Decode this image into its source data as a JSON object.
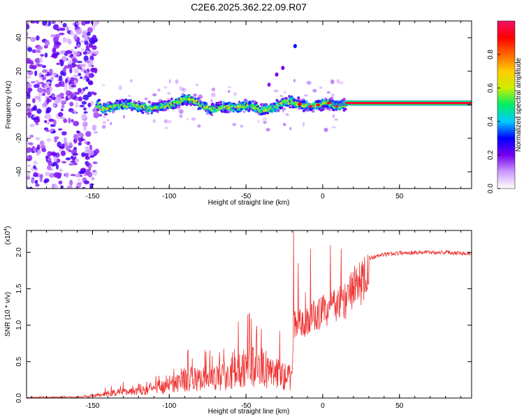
{
  "chart_data": [
    {
      "type": "heatmap",
      "title": "C2E6.2025.362.22.09.R07",
      "xlabel": "Height of straight line (km)",
      "ylabel": "Frequency (Hz)",
      "xlim": [
        -193,
        97
      ],
      "ylim": [
        -50,
        50
      ],
      "xticks": [
        -150,
        -100,
        -50,
        0,
        50
      ],
      "yticks": [
        -40,
        -20,
        0,
        20,
        40
      ],
      "xtick_labels": [
        "-150",
        "-100",
        "-50",
        "0",
        "50"
      ],
      "ytick_labels": [
        "-40",
        "-20",
        "0",
        "20",
        "40"
      ],
      "colorbar": {
        "label": "Normalized spectral amplitude",
        "range": [
          0,
          1
        ],
        "ticks": [
          0.0,
          0.2,
          0.4,
          0.6,
          0.8
        ],
        "tick_labels": [
          "0.0",
          "0.2",
          "0.4",
          "0.6",
          "0.8"
        ],
        "colors": [
          "#ffffff",
          "#cc99ff",
          "#7700ee",
          "#0000ff",
          "#00ccff",
          "#00ee66",
          "#ccee00",
          "#ffcc00",
          "#ff6600",
          "#ff0000",
          "#ee1166"
        ]
      },
      "regions": [
        {
          "name": "noise",
          "x_range": [
            -193,
            -147
          ],
          "freq_range": [
            -50,
            50
          ],
          "amplitude": 0.2
        },
        {
          "name": "weak-signal",
          "x_range": [
            -147,
            15
          ],
          "freq_center": 0,
          "freq_spread": 4,
          "amplitude": 0.35
        },
        {
          "name": "strong-line",
          "x_range": [
            15,
            97
          ],
          "freq_center": 1,
          "amplitude": 0.95
        }
      ],
      "ridge": {
        "x": [
          -145,
          -135,
          -125,
          -115,
          -105,
          -95,
          -88,
          -80,
          -72,
          -64,
          -56,
          -48,
          -40,
          -32,
          -26,
          -20,
          -14,
          -8,
          -2,
          4,
          10,
          14
        ],
        "y": [
          -3,
          -1,
          0,
          -2,
          -1,
          1,
          4,
          0,
          -3,
          -1,
          -2,
          0,
          -3,
          -2,
          1,
          2,
          0,
          -1,
          0,
          1,
          -1,
          0
        ]
      }
    },
    {
      "type": "line",
      "xlabel": "Height of straight line (km)",
      "ylabel": "SNR (10 * v/v)",
      "y_multiplier": "(x10",
      "y_exponent": "4",
      "y_exponent_close": ")",
      "xlim": [
        -193,
        97
      ],
      "ylim": [
        0,
        2.3
      ],
      "xticks": [
        -150,
        -100,
        -50,
        0,
        50
      ],
      "yticks": [
        0.0,
        0.5,
        1.0,
        1.5,
        2.0
      ],
      "xtick_labels": [
        "-150",
        "-100",
        "-50",
        "0",
        "50"
      ],
      "ytick_labels": [
        "0.0",
        "0.5",
        "1.0",
        "1.5",
        "2.0"
      ],
      "color": "#ee3333",
      "envelope": {
        "x": [
          -193,
          -160,
          -150,
          -140,
          -130,
          -120,
          -110,
          -100,
          -90,
          -80,
          -70,
          -60,
          -50,
          -40,
          -30,
          -25,
          -20,
          -19,
          -17,
          -10,
          -5,
          0,
          10,
          15,
          20,
          25,
          30,
          40,
          50,
          60,
          70,
          80,
          90,
          97
        ],
        "y": [
          0.01,
          0.02,
          0.03,
          0.08,
          0.12,
          0.15,
          0.18,
          0.22,
          0.35,
          0.32,
          0.35,
          0.45,
          0.6,
          0.55,
          0.45,
          0.4,
          0.35,
          1.2,
          1.15,
          1.2,
          1.3,
          1.35,
          1.45,
          1.55,
          1.72,
          1.82,
          1.92,
          1.97,
          1.99,
          2.0,
          2.0,
          2.0,
          1.99,
          1.98
        ]
      },
      "spikes": [
        {
          "x": -130,
          "y": 0.22
        },
        {
          "x": -120,
          "y": 0.2
        },
        {
          "x": -88,
          "y": 0.65
        },
        {
          "x": -72,
          "y": 0.58
        },
        {
          "x": -55,
          "y": 1.05
        },
        {
          "x": -48,
          "y": 1.15
        },
        {
          "x": -40,
          "y": 0.95
        },
        {
          "x": -28,
          "y": 0.92
        },
        {
          "x": -19,
          "y": 2.3
        },
        {
          "x": -16,
          "y": 1.85
        },
        {
          "x": -8,
          "y": 2.05
        },
        {
          "x": 5,
          "y": 2.1
        },
        {
          "x": 12,
          "y": 2.05
        }
      ]
    }
  ]
}
